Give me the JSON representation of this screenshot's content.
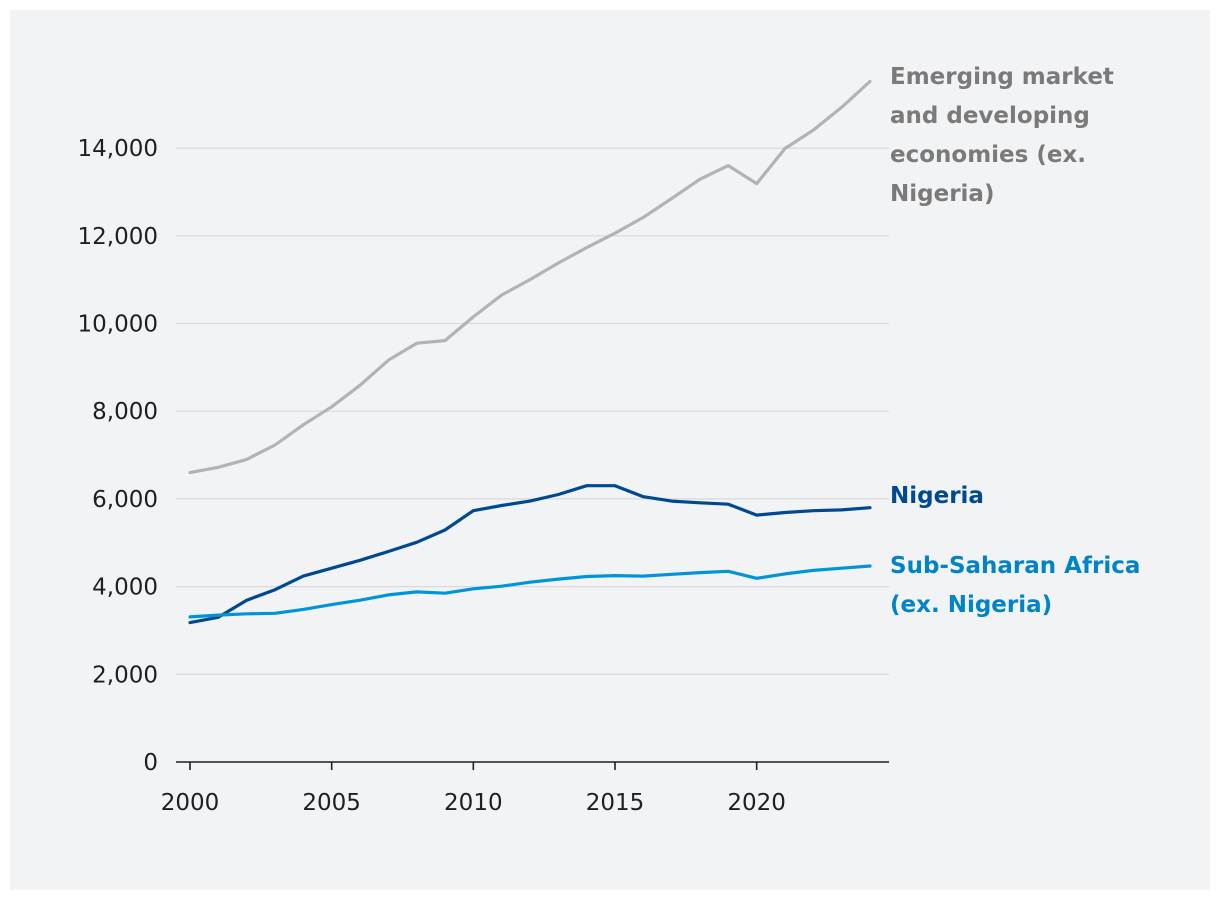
{
  "chart_data": {
    "type": "line",
    "title": "",
    "xlabel": "",
    "ylabel": "",
    "xlim": [
      2000,
      2024
    ],
    "ylim": [
      0,
      15500
    ],
    "x_ticks": [
      2000,
      2005,
      2010,
      2015,
      2020
    ],
    "x_tick_labels": [
      "2000",
      "2005",
      "2010",
      "2015",
      "2020"
    ],
    "y_ticks": [
      0,
      2000,
      4000,
      6000,
      8000,
      10000,
      12000,
      14000
    ],
    "y_tick_labels": [
      "0",
      "2,000",
      "4,000",
      "6,000",
      "8,000",
      "10,000",
      "12,000",
      "14,000"
    ],
    "grid": true,
    "x": [
      2000,
      2001,
      2002,
      2003,
      2004,
      2005,
      2006,
      2007,
      2008,
      2009,
      2010,
      2011,
      2012,
      2013,
      2014,
      2015,
      2016,
      2017,
      2018,
      2019,
      2020,
      2021,
      2022,
      2023,
      2024
    ],
    "series": [
      {
        "name": "Emerging market and developing economies (ex. Nigeria)",
        "label_lines": [
          "Emerging market",
          "and developing",
          "economies (ex.",
          "Nigeria)"
        ],
        "color": "#b3b3b3",
        "label_color": "#7a7a7a",
        "values": [
          6600,
          6720,
          6900,
          7230,
          7690,
          8100,
          8590,
          9160,
          9550,
          9610,
          10150,
          10650,
          11000,
          11380,
          11730,
          12060,
          12420,
          12850,
          13290,
          13600,
          13190,
          13990,
          14410,
          14930,
          15520
        ]
      },
      {
        "name": "Nigeria",
        "label_lines": [
          "Nigeria"
        ],
        "color": "#004990",
        "label_color": "#004990",
        "values": [
          3180,
          3300,
          3690,
          3930,
          4240,
          4420,
          4600,
          4800,
          5010,
          5290,
          5730,
          5850,
          5950,
          6100,
          6300,
          6300,
          6050,
          5950,
          5910,
          5880,
          5630,
          5690,
          5730,
          5750,
          5800
        ]
      },
      {
        "name": "Sub-Saharan Africa (ex. Nigeria)",
        "label_lines": [
          "Sub-Saharan Africa",
          "(ex. Nigeria)"
        ],
        "color": "#0095d9",
        "label_color": "#0084c7",
        "values": [
          3310,
          3350,
          3380,
          3390,
          3480,
          3590,
          3690,
          3810,
          3880,
          3850,
          3950,
          4010,
          4100,
          4170,
          4230,
          4250,
          4240,
          4280,
          4320,
          4350,
          4190,
          4290,
          4370,
          4420,
          4470
        ]
      }
    ]
  }
}
